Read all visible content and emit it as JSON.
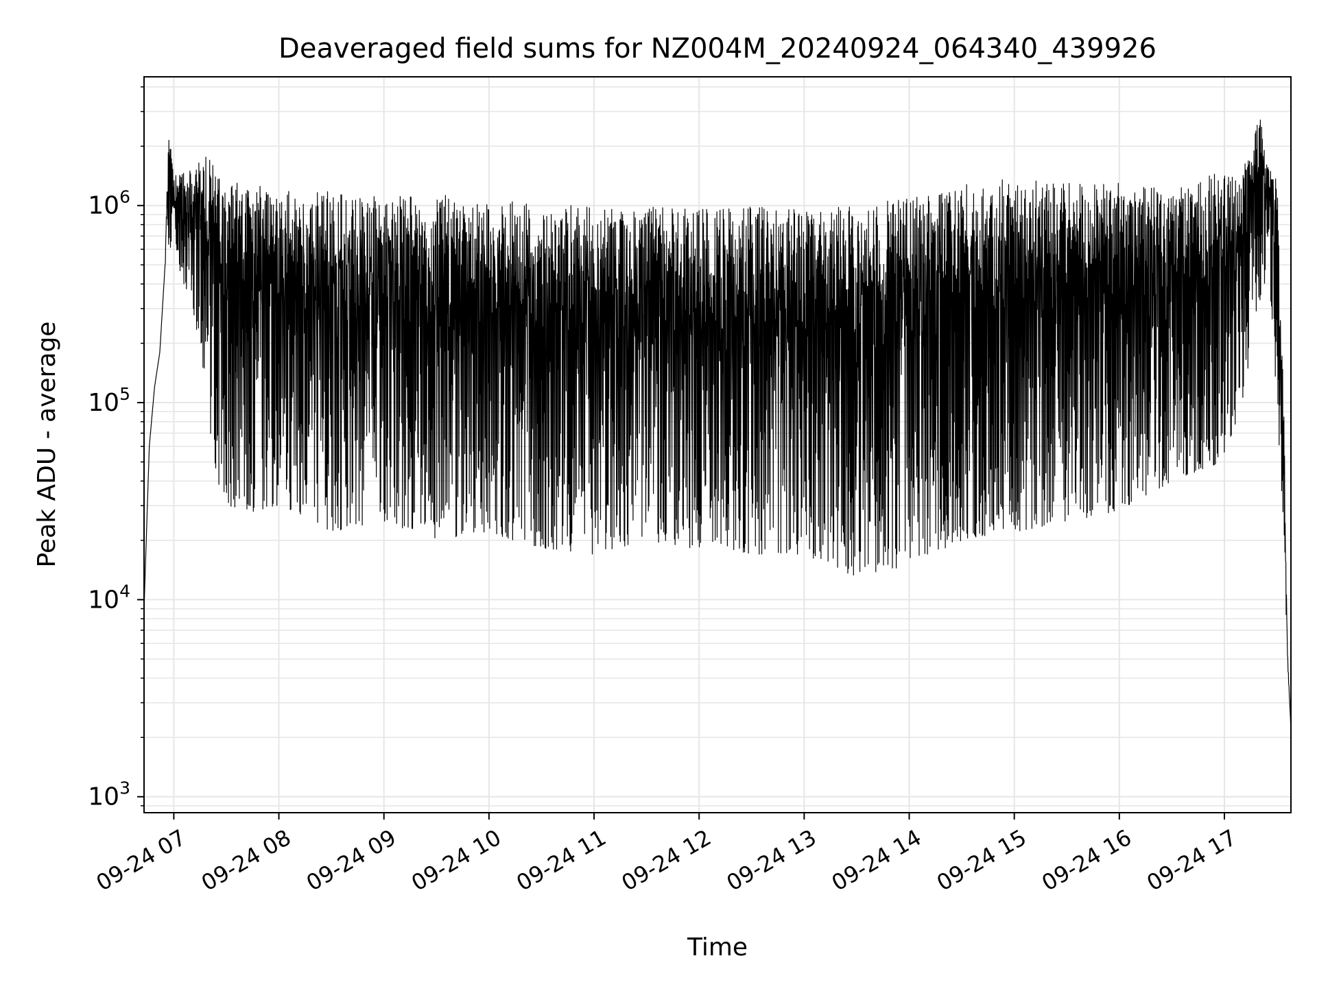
{
  "chart_data": {
    "type": "line",
    "title": "Deaveraged field sums for NZ004M_20240924_064340_439926",
    "xlabel": "Time",
    "ylabel": "Peak ADU - average",
    "yscale": "log",
    "xlim": [
      "2024-09-24 06:43",
      "2024-09-24 17:38"
    ],
    "ylim": [
      830,
      4500000
    ],
    "grid": "major-and-minor",
    "line_color": "#000000",
    "grid_color": "#e6e6e6",
    "x_tick_labels": [
      {
        "t": "2024-09-24 07:00",
        "label": "09-24 07"
      },
      {
        "t": "2024-09-24 08:00",
        "label": "09-24 08"
      },
      {
        "t": "2024-09-24 09:00",
        "label": "09-24 09"
      },
      {
        "t": "2024-09-24 10:00",
        "label": "09-24 10"
      },
      {
        "t": "2024-09-24 11:00",
        "label": "09-24 11"
      },
      {
        "t": "2024-09-24 12:00",
        "label": "09-24 12"
      },
      {
        "t": "2024-09-24 13:00",
        "label": "09-24 13"
      },
      {
        "t": "2024-09-24 14:00",
        "label": "09-24 14"
      },
      {
        "t": "2024-09-24 15:00",
        "label": "09-24 15"
      },
      {
        "t": "2024-09-24 16:00",
        "label": "09-24 16"
      },
      {
        "t": "2024-09-24 17:00",
        "label": "09-24 17"
      }
    ],
    "y_tick_labels": [
      {
        "value": 1000,
        "base": "10",
        "exp": "3"
      },
      {
        "value": 10000,
        "base": "10",
        "exp": "4"
      },
      {
        "value": 100000,
        "base": "10",
        "exp": "5"
      },
      {
        "value": 1000000,
        "base": "10",
        "exp": "6"
      }
    ],
    "series": [
      {
        "x": [
          "2024-09-24 06:43",
          "2024-09-24 06:46",
          "2024-09-24 06:49",
          "2024-09-24 06:52",
          "2024-09-24 06:55",
          "2024-09-24 06:57",
          "2024-09-24 07:00",
          "2024-09-24 07:05",
          "2024-09-24 07:10",
          "2024-09-24 07:15",
          "2024-09-24 07:20",
          "2024-09-24 07:25",
          "2024-09-24 07:30",
          "2024-09-24 07:45",
          "2024-09-24 08:00",
          "2024-09-24 08:30",
          "2024-09-24 09:00",
          "2024-09-24 09:30",
          "2024-09-24 10:00",
          "2024-09-24 10:30",
          "2024-09-24 11:00",
          "2024-09-24 11:30",
          "2024-09-24 12:00",
          "2024-09-24 12:30",
          "2024-09-24 13:00",
          "2024-09-24 13:30",
          "2024-09-24 14:00",
          "2024-09-24 14:30",
          "2024-09-24 15:00",
          "2024-09-24 15:30",
          "2024-09-24 16:00",
          "2024-09-24 16:30",
          "2024-09-24 16:45",
          "2024-09-24 17:00",
          "2024-09-24 17:10",
          "2024-09-24 17:20",
          "2024-09-24 17:25",
          "2024-09-24 17:30",
          "2024-09-24 17:34",
          "2024-09-24 17:36",
          "2024-09-24 17:38"
        ],
        "low": [
          9000,
          60000,
          120000,
          180000,
          500000,
          600000,
          600000,
          400000,
          300000,
          200000,
          80000,
          40000,
          30000,
          28000,
          30000,
          22000,
          25000,
          20000,
          22000,
          18000,
          17000,
          20000,
          18000,
          17000,
          17000,
          13000,
          15000,
          20000,
          22000,
          25000,
          28000,
          40000,
          45000,
          50000,
          100000,
          300000,
          500000,
          100000,
          20000,
          5000,
          2200
        ],
        "high": [
          9000,
          60000,
          120000,
          180000,
          500000,
          2500000,
          1400000,
          1500000,
          1500000,
          1700000,
          1800000,
          1400000,
          1300000,
          1300000,
          1200000,
          1200000,
          1100000,
          1150000,
          1050000,
          1050000,
          1000000,
          1000000,
          1000000,
          1000000,
          950000,
          1000000,
          1100000,
          1300000,
          1400000,
          1300000,
          1300000,
          1200000,
          1400000,
          1500000,
          1500000,
          3000000,
          1600000,
          1400000,
          100000,
          5500,
          2200
        ]
      }
    ]
  }
}
